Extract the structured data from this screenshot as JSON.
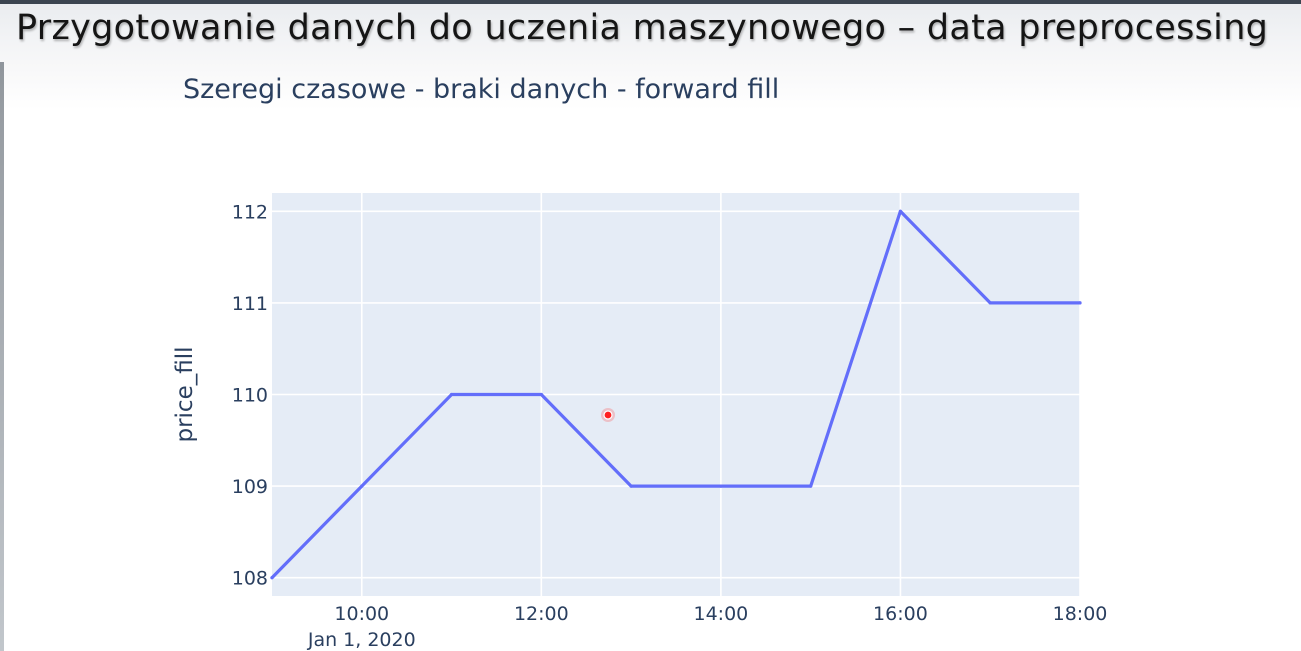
{
  "banner": {
    "title": "Przygotowanie danych do uczenia maszynowego – data preprocessing"
  },
  "chart_data": {
    "type": "line",
    "title": "Szeregi czasowe - braki danych - forward fill",
    "xlabel": "",
    "ylabel": "price_fill",
    "x": [
      "09:00",
      "10:00",
      "11:00",
      "12:00",
      "13:00",
      "14:00",
      "15:00",
      "16:00",
      "17:00",
      "18:00"
    ],
    "series": [
      {
        "values": [
          108,
          109,
          110,
          110,
          109,
          109,
          109,
          112,
          111,
          111
        ],
        "color": "#636efa"
      }
    ],
    "xlim": [
      "09:00",
      "18:00"
    ],
    "ylim": [
      107.8,
      112.2
    ],
    "x_ticks": [
      "10:00",
      "12:00",
      "14:00",
      "16:00",
      "18:00"
    ],
    "x_tick_date": "Jan 1, 2020",
    "y_ticks": [
      108,
      109,
      110,
      111,
      112
    ],
    "grid": true,
    "plot_background": "#e5ecf6",
    "grid_color": "#ffffff"
  }
}
